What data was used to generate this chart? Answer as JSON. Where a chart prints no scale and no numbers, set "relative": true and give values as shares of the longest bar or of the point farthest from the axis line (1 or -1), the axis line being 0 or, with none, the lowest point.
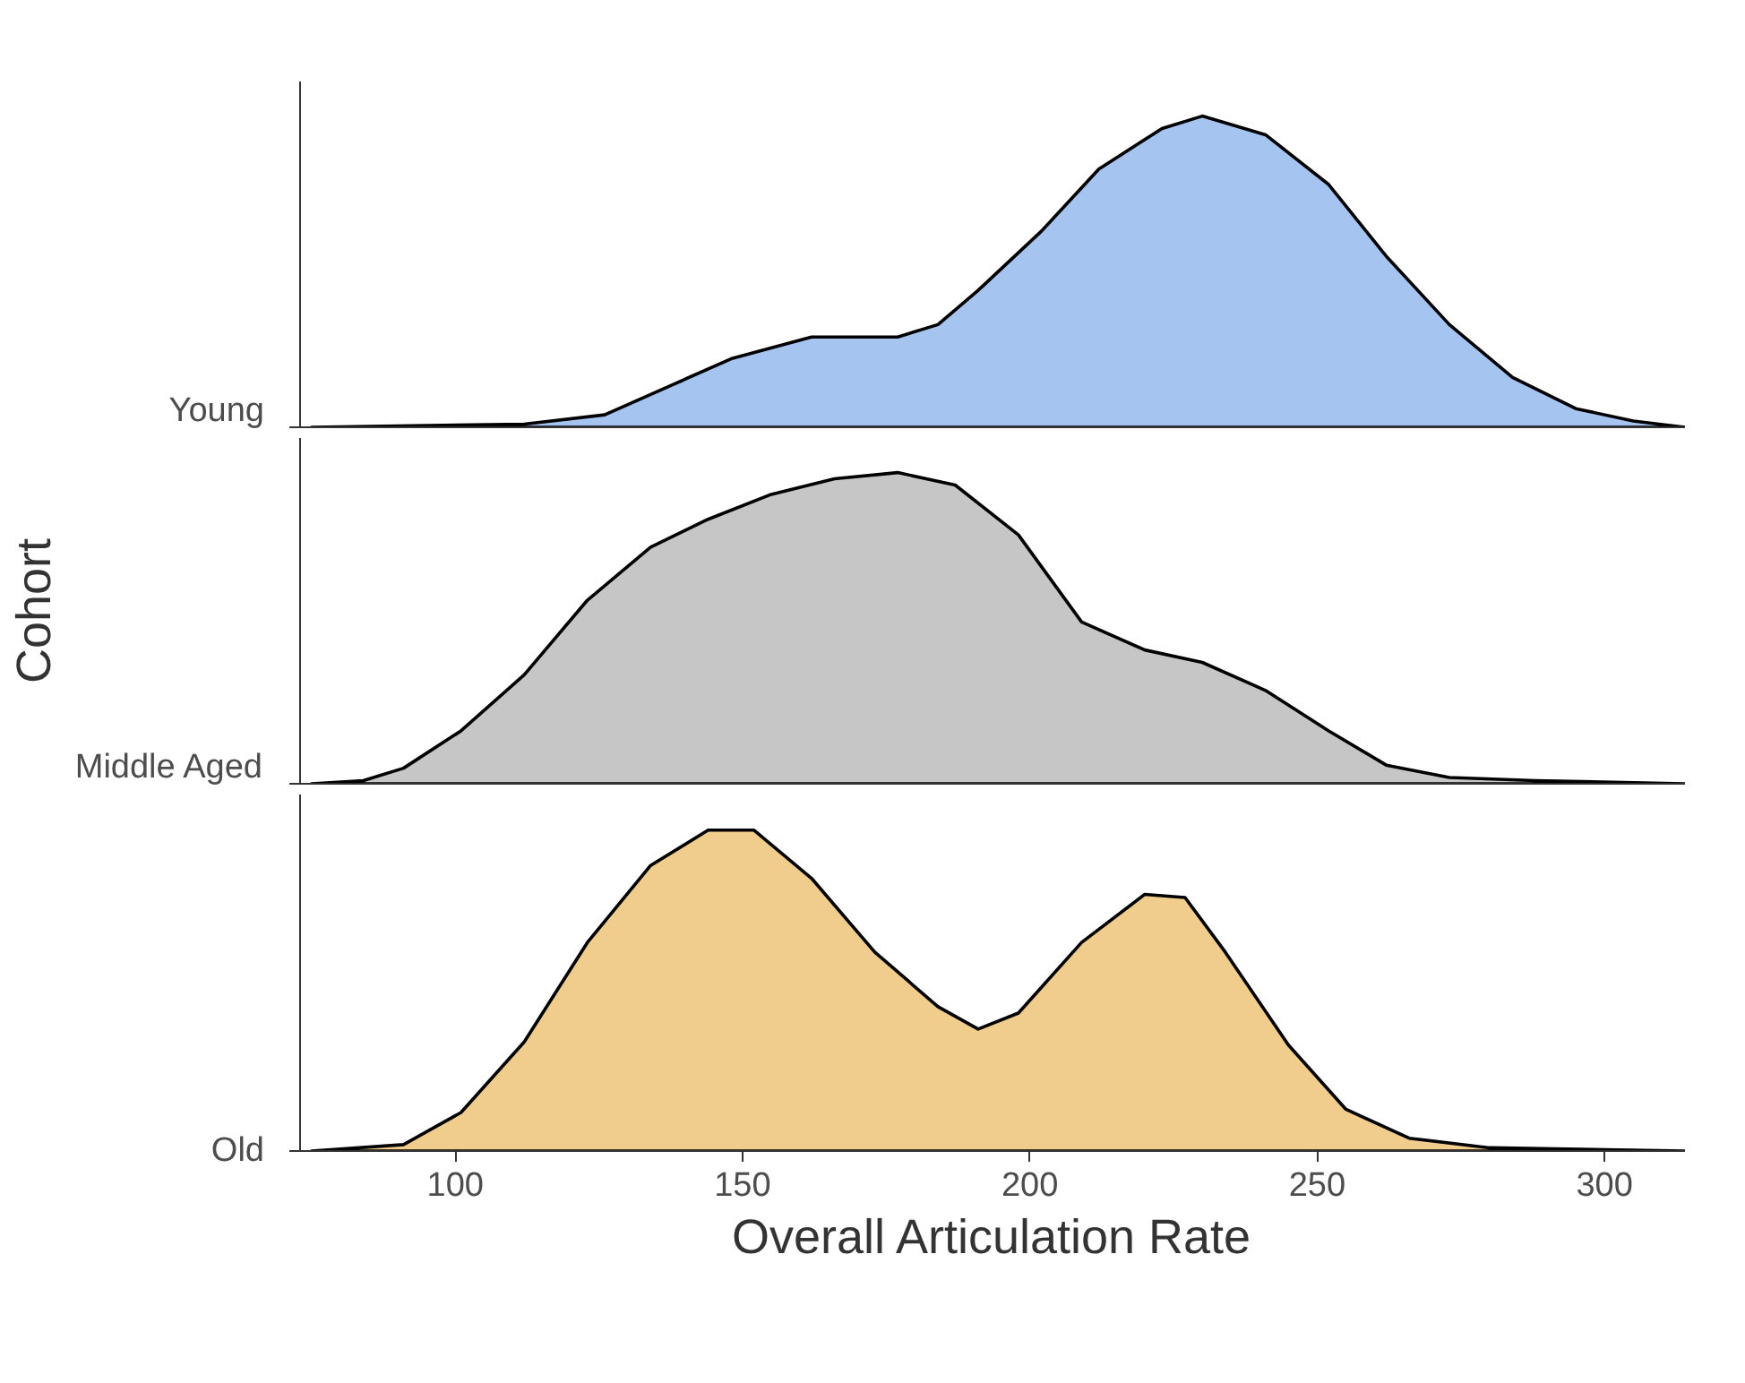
{
  "chart_data": [
    {
      "type": "area",
      "relative": true,
      "xlim": [
        73,
        314
      ],
      "xticks": [
        100,
        150,
        200,
        250,
        300
      ],
      "tick_labels": "y",
      "series": [
        {
          "name": "Young",
          "color": "#a6c4f0",
          "x": [
            75,
            112,
            126,
            137,
            148,
            162,
            177,
            184,
            191,
            202,
            212,
            223,
            230,
            241,
            252,
            262,
            273,
            284,
            295,
            305,
            314
          ],
          "values": [
            0,
            0.01,
            0.04,
            0.13,
            0.22,
            0.29,
            0.29,
            0.33,
            0.44,
            0.63,
            0.83,
            0.96,
            1,
            0.94,
            0.78,
            0.55,
            0.33,
            0.16,
            0.06,
            0.02,
            0
          ]
        }
      ]
    },
    {
      "type": "area",
      "relative": true,
      "ylabel": "Cohort",
      "xlim": [
        73,
        314
      ],
      "xticks": [
        100,
        150,
        200,
        250,
        300
      ],
      "tick_labels": "y",
      "series": [
        {
          "name": "Middle Aged",
          "color": "#c6c6c6",
          "x": [
            75,
            84,
            91,
            101,
            112,
            123,
            134,
            144,
            155,
            166,
            177,
            187,
            198,
            209,
            220,
            230,
            241,
            252,
            262,
            273,
            288,
            314
          ],
          "values": [
            0,
            0.01,
            0.05,
            0.17,
            0.35,
            0.59,
            0.76,
            0.85,
            0.93,
            0.98,
            1,
            0.96,
            0.8,
            0.52,
            0.43,
            0.39,
            0.3,
            0.17,
            0.06,
            0.02,
            0.01,
            0
          ]
        }
      ]
    },
    {
      "type": "area",
      "relative": true,
      "xlabel": "Overall Articulation Rate",
      "xlim": [
        73,
        314
      ],
      "xticks": [
        100,
        150,
        200,
        250,
        300
      ],
      "series": [
        {
          "name": "Old",
          "color": "#f0cd8c",
          "x": [
            75,
            91,
            101,
            112,
            123,
            134,
            144,
            152,
            162,
            173,
            184,
            191,
            198,
            209,
            220,
            227,
            234,
            245,
            255,
            266,
            280,
            314
          ],
          "values": [
            0,
            0.02,
            0.12,
            0.34,
            0.65,
            0.89,
            1,
            1,
            0.85,
            0.62,
            0.45,
            0.38,
            0.43,
            0.65,
            0.8,
            0.79,
            0.62,
            0.33,
            0.13,
            0.04,
            0.01,
            0
          ]
        }
      ]
    }
  ]
}
